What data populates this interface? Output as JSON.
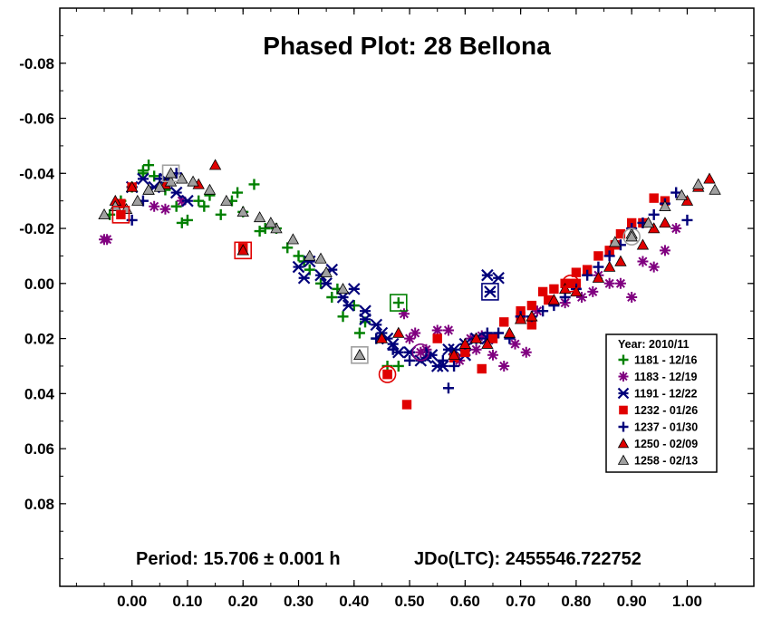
{
  "chart_data": {
    "type": "scatter",
    "title": "Phased Plot: 28 Bellona",
    "footer_period": "Period: 15.706 ± 0.001 h",
    "footer_epoch": "JDo(LTC): 2455546.722752",
    "xlabel": "",
    "ylabel": "",
    "xlim": [
      -0.13,
      1.12
    ],
    "ylim": [
      -0.1,
      0.11
    ],
    "y_inverted": true,
    "x_ticks": [
      "0.00",
      "0.10",
      "0.20",
      "0.30",
      "0.40",
      "0.50",
      "0.60",
      "0.70",
      "0.80",
      "0.90",
      "1.00"
    ],
    "x_tick_values": [
      0.0,
      0.1,
      0.2,
      0.3,
      0.4,
      0.5,
      0.6,
      0.7,
      0.8,
      0.9,
      1.0
    ],
    "y_ticks": [
      "-0.08",
      "-0.06",
      "-0.04",
      "-0.02",
      "0.00",
      "0.02",
      "0.04",
      "0.06",
      "0.08"
    ],
    "y_tick_values": [
      -0.08,
      -0.06,
      -0.04,
      -0.02,
      0.0,
      0.02,
      0.04,
      0.06,
      0.08
    ],
    "grid": false,
    "legend": {
      "title": "Year: 2010/11",
      "placement": "right"
    },
    "series": [
      {
        "name": "1181 - 12/16",
        "marker": "plus",
        "color": "#008000",
        "x": [
          -0.04,
          -0.02,
          0.0,
          0.02,
          0.03,
          0.04,
          0.06,
          0.08,
          0.1,
          0.12,
          0.14,
          0.16,
          0.18,
          0.2,
          0.22,
          0.24,
          0.26,
          0.28,
          0.3,
          0.32,
          0.34,
          0.36,
          0.38,
          0.4,
          0.41,
          0.42,
          0.44,
          0.46,
          0.48,
          0.02,
          0.09,
          0.13,
          0.19,
          0.23,
          0.31,
          0.37
        ],
        "y": [
          -0.025,
          -0.03,
          -0.035,
          -0.041,
          -0.043,
          -0.039,
          -0.034,
          -0.028,
          -0.023,
          -0.03,
          -0.032,
          -0.025,
          -0.03,
          -0.026,
          -0.036,
          -0.02,
          -0.02,
          -0.013,
          -0.01,
          -0.005,
          0.0,
          0.005,
          0.012,
          0.008,
          0.018,
          0.014,
          0.02,
          0.03,
          0.03,
          -0.04,
          -0.022,
          -0.028,
          -0.033,
          -0.019,
          -0.008,
          0.002
        ]
      },
      {
        "name": "1183 - 12/19",
        "marker": "star",
        "color": "#800080",
        "x": [
          -0.05,
          -0.045,
          0.04,
          0.06,
          0.09,
          0.49,
          0.51,
          0.53,
          0.55,
          0.57,
          0.59,
          0.61,
          0.63,
          0.65,
          0.67,
          0.69,
          0.71,
          0.73,
          0.78,
          0.81,
          0.84,
          0.86,
          0.88,
          0.9,
          0.92,
          0.94,
          0.96,
          0.98,
          0.5,
          0.62,
          0.83
        ],
        "y": [
          -0.016,
          -0.016,
          -0.028,
          -0.027,
          -0.03,
          0.011,
          0.018,
          0.024,
          0.017,
          0.017,
          0.028,
          0.02,
          0.019,
          0.026,
          0.03,
          0.022,
          0.025,
          0.01,
          0.007,
          0.005,
          -0.003,
          0.0,
          0.0,
          0.005,
          -0.008,
          -0.006,
          -0.012,
          -0.02,
          0.02,
          0.024,
          0.003
        ]
      },
      {
        "name": "1191 - 12/22",
        "marker": "xstar",
        "color": "#00007a",
        "x": [
          0.0,
          0.02,
          0.04,
          0.06,
          0.08,
          0.1,
          0.3,
          0.32,
          0.34,
          0.36,
          0.38,
          0.4,
          0.42,
          0.44,
          0.46,
          0.48,
          0.5,
          0.52,
          0.54,
          0.56,
          0.58,
          0.6,
          0.62,
          0.64,
          0.66,
          0.42,
          0.45,
          0.5,
          0.55,
          0.6,
          0.64,
          0.31,
          0.35,
          0.39,
          0.47,
          0.53,
          0.57
        ],
        "y": [
          -0.035,
          -0.038,
          -0.035,
          -0.038,
          -0.033,
          -0.03,
          -0.006,
          -0.008,
          -0.003,
          -0.005,
          0.005,
          0.002,
          0.01,
          0.015,
          0.02,
          0.025,
          0.025,
          0.028,
          0.026,
          0.03,
          0.024,
          0.022,
          0.02,
          -0.003,
          -0.002,
          0.013,
          0.018,
          0.025,
          0.03,
          0.026,
          0.02,
          -0.002,
          0.0,
          0.008,
          0.022,
          0.027,
          0.024
        ]
      },
      {
        "name": "1232 - 01/26",
        "marker": "square",
        "color": "#e00000",
        "x": [
          -0.02,
          0.0,
          0.2,
          0.46,
          0.495,
          0.6,
          0.63,
          0.65,
          0.67,
          0.7,
          0.72,
          0.74,
          0.76,
          0.78,
          0.8,
          0.82,
          0.84,
          0.86,
          0.88,
          0.9,
          0.92,
          0.94,
          0.96,
          0.72,
          0.8,
          0.87,
          0.75,
          0.55,
          0.58,
          0.7
        ],
        "y": [
          -0.029,
          -0.035,
          -0.013,
          0.033,
          0.044,
          0.025,
          0.031,
          0.02,
          0.014,
          0.01,
          0.008,
          0.003,
          0.002,
          0.0,
          0.0,
          -0.005,
          -0.01,
          -0.012,
          -0.018,
          -0.022,
          -0.022,
          -0.031,
          -0.03,
          0.015,
          -0.004,
          -0.014,
          0.006,
          0.02,
          0.027,
          0.012
        ]
      },
      {
        "name": "1237 - 01/30",
        "marker": "plus",
        "color": "#00007a",
        "x": [
          0.0,
          0.02,
          0.05,
          0.08,
          0.44,
          0.47,
          0.5,
          0.53,
          0.56,
          0.58,
          0.6,
          0.62,
          0.64,
          0.66,
          0.68,
          0.7,
          0.72,
          0.74,
          0.76,
          0.78,
          0.8,
          0.82,
          0.84,
          0.86,
          0.88,
          0.9,
          0.92,
          0.94,
          0.96,
          0.98,
          1.0,
          0.57
        ],
        "y": [
          -0.023,
          -0.03,
          -0.038,
          -0.04,
          0.02,
          0.024,
          0.028,
          0.025,
          0.028,
          0.03,
          0.022,
          0.02,
          0.018,
          0.018,
          0.02,
          0.012,
          0.012,
          0.01,
          0.008,
          0.005,
          0.002,
          -0.003,
          -0.006,
          -0.01,
          -0.014,
          -0.02,
          -0.022,
          -0.025,
          -0.029,
          -0.033,
          -0.023,
          0.038
        ]
      },
      {
        "name": "1250 - 02/09",
        "marker": "triangle",
        "color": "#e00000",
        "x": [
          -0.03,
          0.0,
          0.03,
          0.06,
          0.09,
          0.12,
          0.15,
          0.2,
          0.45,
          0.48,
          0.58,
          0.6,
          0.64,
          0.68,
          0.72,
          0.76,
          0.8,
          0.84,
          0.88,
          0.92,
          0.96,
          1.0,
          1.02,
          1.04,
          0.62,
          0.7,
          0.78,
          0.86,
          0.94
        ],
        "y": [
          -0.03,
          -0.035,
          -0.034,
          -0.036,
          -0.038,
          -0.036,
          -0.043,
          -0.012,
          0.02,
          0.018,
          0.026,
          0.022,
          0.022,
          0.018,
          0.012,
          0.006,
          0.003,
          -0.002,
          -0.008,
          -0.014,
          -0.022,
          -0.03,
          -0.035,
          -0.038,
          0.02,
          0.013,
          0.002,
          -0.006,
          -0.02
        ]
      },
      {
        "name": "1258 - 02/13",
        "marker": "triangle",
        "color": "#a0a0a0",
        "x": [
          -0.05,
          -0.03,
          -0.01,
          0.01,
          0.03,
          0.05,
          0.07,
          0.09,
          0.11,
          0.14,
          0.17,
          0.2,
          0.23,
          0.26,
          0.29,
          0.32,
          0.35,
          0.38,
          0.41,
          0.9,
          0.93,
          0.96,
          0.99,
          1.02,
          1.05,
          0.25,
          0.34,
          0.87
        ],
        "y": [
          -0.025,
          -0.028,
          -0.027,
          -0.03,
          -0.034,
          -0.035,
          -0.037,
          -0.038,
          -0.037,
          -0.034,
          -0.03,
          -0.026,
          -0.024,
          -0.02,
          -0.016,
          -0.01,
          -0.004,
          0.002,
          0.026,
          -0.018,
          -0.022,
          -0.028,
          -0.032,
          -0.036,
          -0.034,
          -0.022,
          -0.009,
          -0.015
        ]
      }
    ],
    "highlighted": [
      {
        "series": 3,
        "x": -0.02,
        "y": -0.025,
        "shape": "square"
      },
      {
        "series": 5,
        "x": 0.2,
        "y": -0.012,
        "shape": "square"
      },
      {
        "series": 0,
        "x": 0.48,
        "y": 0.007,
        "shape": "square"
      },
      {
        "series": 6,
        "x": 0.41,
        "y": 0.026,
        "shape": "square"
      },
      {
        "series": 3,
        "x": 0.46,
        "y": 0.033,
        "shape": "circle"
      },
      {
        "series": 1,
        "x": 0.52,
        "y": 0.025,
        "shape": "circle"
      },
      {
        "series": 2,
        "x": 0.645,
        "y": 0.003,
        "shape": "square"
      },
      {
        "series": 3,
        "x": 0.79,
        "y": 0.0,
        "shape": "circle"
      },
      {
        "series": 6,
        "x": 0.9,
        "y": -0.017,
        "shape": "circle"
      },
      {
        "series": 6,
        "x": 0.07,
        "y": -0.04,
        "shape": "square"
      }
    ]
  }
}
